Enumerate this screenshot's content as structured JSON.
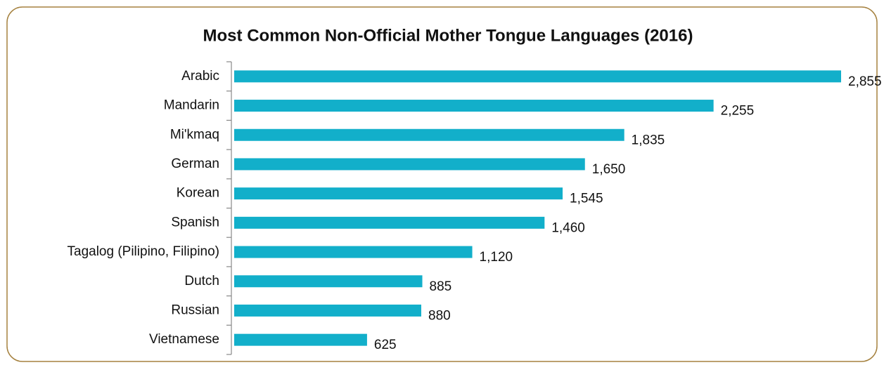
{
  "chart_data": {
    "type": "barh",
    "title": "Most Common Non-Official Mother Tongue  Languages (2016)",
    "categories": [
      "Arabic",
      "Mandarin",
      "Mi'kmaq",
      "German",
      "Korean",
      "Spanish",
      "Tagalog (Pilipino, Filipino)",
      "Dutch",
      "Russian",
      "Vietnamese"
    ],
    "values": [
      2855,
      2255,
      1835,
      1650,
      1545,
      1460,
      1120,
      885,
      880,
      625
    ],
    "value_labels": [
      "2,855",
      "2,255",
      "1,835",
      "1,650",
      "1,545",
      "1,460",
      "1,120",
      "885",
      "880",
      "625"
    ],
    "color": "#12afca"
  }
}
